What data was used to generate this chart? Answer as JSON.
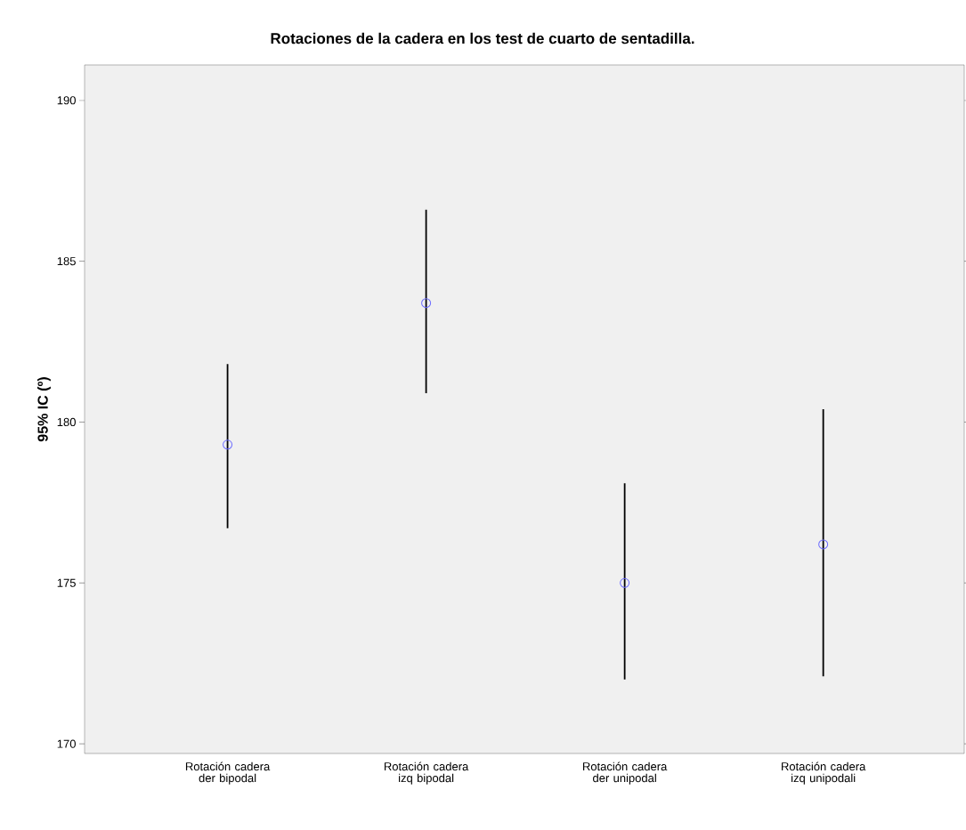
{
  "chart_data": {
    "type": "scatter",
    "title": "Rotaciones de la cadera en los test de cuarto de sentadilla.",
    "ylabel": "95% IC (º)",
    "categories": [
      "Rotación cadera der bipodal",
      "Rotación cadera izq bipodal",
      "Rotación cadera der unipodal",
      "Rotación cadera izq unipodali"
    ],
    "values": [
      179.3,
      183.7,
      175.0,
      176.2
    ],
    "errors": [
      [
        176.7,
        181.8
      ],
      [
        180.9,
        186.6
      ],
      [
        172.0,
        178.1
      ],
      [
        172.1,
        180.4
      ]
    ],
    "color": "#6b6bff",
    "marker": "circle",
    "grid": false,
    "ylim": [
      169.7,
      191.1
    ],
    "yticks": [
      170,
      175,
      180,
      185,
      190
    ]
  }
}
